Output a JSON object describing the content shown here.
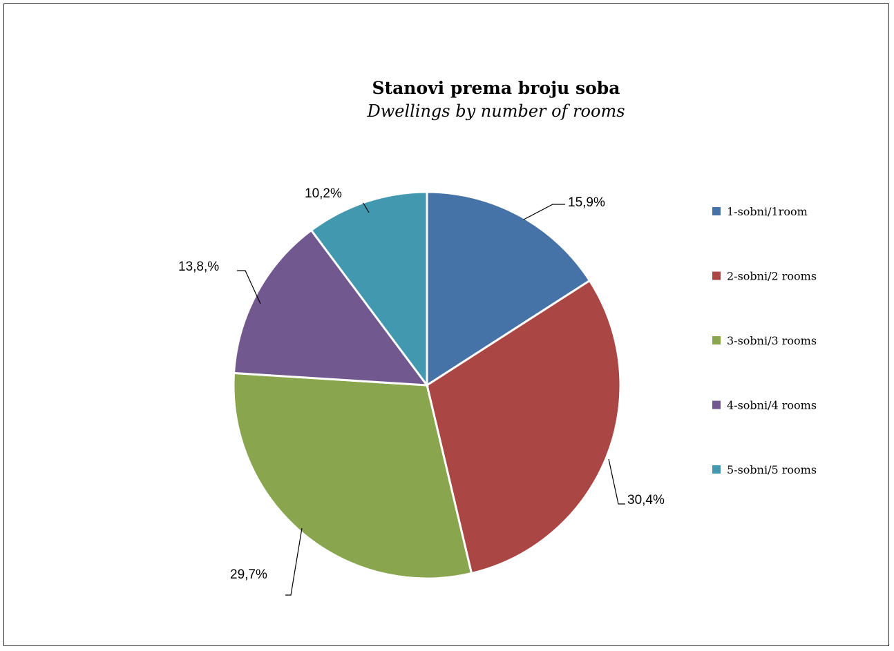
{
  "chart_data": {
    "type": "pie",
    "title": "Stanovi prema broju soba",
    "subtitle": "Dwellings by number of rooms",
    "categories": [
      "1-sobni/1room",
      "2-sobni/2 rooms",
      "3-sobni/3 rooms",
      "4-sobni/4 rooms",
      "5-sobni/5 rooms"
    ],
    "values": [
      15.9,
      30.4,
      29.7,
      13.8,
      10.2
    ],
    "labels": [
      "15,9%",
      "30,4%",
      "29,7%",
      "13,8,%",
      "10,2%"
    ],
    "colors": [
      "#4572A7",
      "#AA4643",
      "#89A54E",
      "#71588F",
      "#4198AF"
    ],
    "legend_position": "right",
    "start_angle": "12 o'clock, clockwise"
  }
}
